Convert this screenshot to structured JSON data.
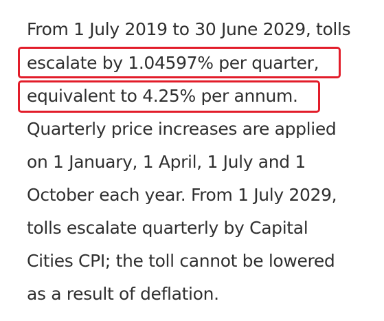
{
  "paragraph": {
    "lines": [
      "From 1 July 2019 to 30 June 2029, tolls",
      "escalate by 1.04597% per quarter,",
      "equivalent to 4.25% per annum.",
      "Quarterly price increases are applied",
      "on 1 January, 1 April, 1 July and 1",
      "October each year. From 1 July 2029,",
      "tolls escalate quarterly by Capital",
      "Cities CPI; the toll cannot be lowered",
      "as a result of deflation."
    ]
  },
  "highlight_color": "#e21d2a",
  "text_color": "#2f2f2f"
}
